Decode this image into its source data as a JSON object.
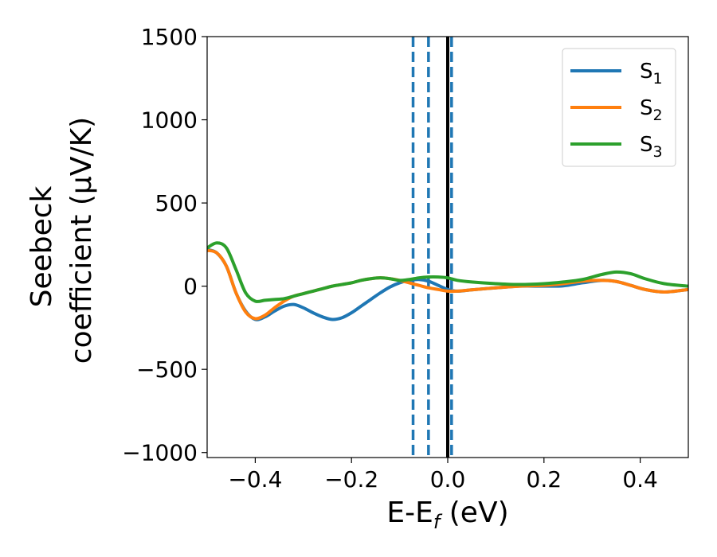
{
  "chart_data": {
    "type": "line",
    "xlabel": "E-E_f (eV)",
    "xlabel_parts": {
      "main": "E-E",
      "sub": "f",
      "tail": " (eV)"
    },
    "ylabel_line1": "Seebeck",
    "ylabel_line2": "coefficient  (μV/K)",
    "xlim": [
      -0.5,
      0.5
    ],
    "ylim": [
      -1030,
      1500
    ],
    "xticks": [
      -0.4,
      -0.2,
      0.0,
      0.2,
      0.4
    ],
    "xtick_labels": [
      "−0.4",
      "−0.2",
      "0.0",
      "0.2",
      "0.4"
    ],
    "yticks": [
      -1000,
      -500,
      0,
      500,
      1000,
      1500
    ],
    "ytick_labels": [
      "−1000",
      "−500",
      "0",
      "500",
      "1000",
      "1500"
    ],
    "legend_position": "top-right",
    "vertical_lines": [
      {
        "x": -0.072,
        "style": "dashed",
        "color": "#1f77b4"
      },
      {
        "x": -0.04,
        "style": "dashed",
        "color": "#1f77b4"
      },
      {
        "x": 0.008,
        "style": "dashed",
        "color": "#1f77b4"
      },
      {
        "x": 0.0,
        "style": "solid",
        "color": "#000000"
      }
    ],
    "series": [
      {
        "name": "S1",
        "label_main": "S",
        "label_sub": "1",
        "color": "#1f77b4",
        "x": [
          -0.5,
          -0.48,
          -0.46,
          -0.44,
          -0.42,
          -0.4,
          -0.38,
          -0.36,
          -0.34,
          -0.32,
          -0.3,
          -0.28,
          -0.26,
          -0.24,
          -0.22,
          -0.2,
          -0.18,
          -0.16,
          -0.14,
          -0.12,
          -0.1,
          -0.08,
          -0.06,
          -0.04,
          -0.02,
          0.0,
          0.02,
          0.05,
          0.1,
          0.15,
          0.2,
          0.24,
          0.28,
          0.32,
          0.35,
          0.38,
          0.41,
          0.45,
          0.5
        ],
        "y": [
          220,
          200,
          120,
          -40,
          -150,
          -200,
          -185,
          -150,
          -120,
          -110,
          -130,
          -160,
          -185,
          -200,
          -190,
          -160,
          -120,
          -80,
          -40,
          -5,
          20,
          35,
          40,
          30,
          5,
          -20,
          -30,
          -22,
          -10,
          0,
          0,
          2,
          20,
          35,
          28,
          5,
          -20,
          -35,
          -20
        ]
      },
      {
        "name": "S2",
        "label_main": "S",
        "label_sub": "2",
        "color": "#ff7f0e",
        "x": [
          -0.5,
          -0.48,
          -0.46,
          -0.44,
          -0.42,
          -0.4,
          -0.38,
          -0.36,
          -0.34,
          -0.32,
          -0.3,
          -0.28,
          -0.26,
          -0.24,
          -0.22,
          -0.2,
          -0.18,
          -0.16,
          -0.14,
          -0.12,
          -0.1,
          -0.08,
          -0.06,
          -0.04,
          -0.02,
          0.0,
          0.02,
          0.05,
          0.1,
          0.15,
          0.2,
          0.24,
          0.28,
          0.32,
          0.35,
          0.38,
          0.41,
          0.45,
          0.5
        ],
        "y": [
          215,
          200,
          120,
          -40,
          -155,
          -195,
          -175,
          -130,
          -90,
          -60,
          -45,
          -30,
          -15,
          0,
          10,
          20,
          35,
          45,
          50,
          45,
          35,
          20,
          5,
          -10,
          -20,
          -30,
          -30,
          -22,
          -10,
          0,
          5,
          15,
          30,
          35,
          28,
          5,
          -20,
          -35,
          -20
        ]
      },
      {
        "name": "S3",
        "label_main": "S",
        "label_sub": "3",
        "color": "#2ca02c",
        "x": [
          -0.5,
          -0.48,
          -0.46,
          -0.44,
          -0.42,
          -0.4,
          -0.38,
          -0.36,
          -0.34,
          -0.32,
          -0.3,
          -0.28,
          -0.26,
          -0.24,
          -0.22,
          -0.2,
          -0.18,
          -0.16,
          -0.14,
          -0.12,
          -0.1,
          -0.08,
          -0.06,
          -0.04,
          -0.02,
          0.0,
          0.02,
          0.05,
          0.1,
          0.15,
          0.2,
          0.24,
          0.28,
          0.32,
          0.35,
          0.38,
          0.41,
          0.45,
          0.5
        ],
        "y": [
          230,
          260,
          230,
          100,
          -40,
          -90,
          -85,
          -80,
          -75,
          -60,
          -45,
          -30,
          -15,
          0,
          10,
          20,
          35,
          45,
          50,
          45,
          35,
          40,
          50,
          55,
          55,
          50,
          35,
          25,
          15,
          10,
          15,
          25,
          40,
          70,
          85,
          75,
          45,
          15,
          0
        ]
      }
    ]
  }
}
